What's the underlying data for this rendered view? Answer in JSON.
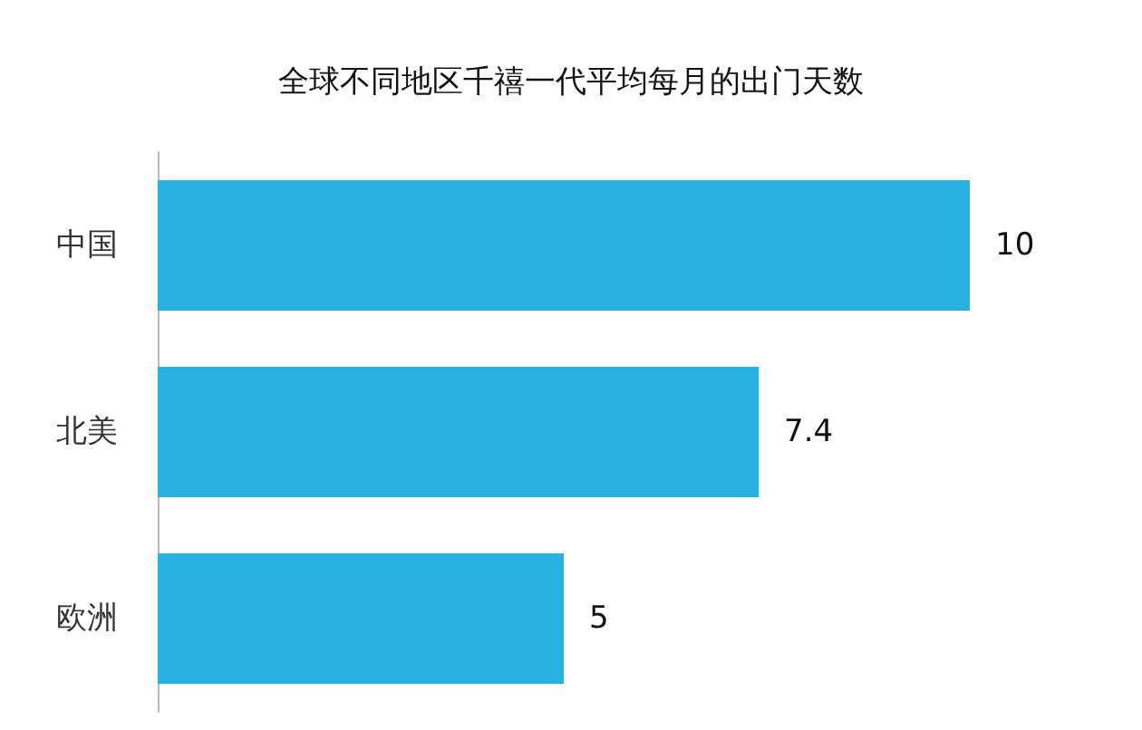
{
  "chart_data": {
    "type": "bar",
    "orientation": "horizontal",
    "title": "全球不同地区千禧一代平均每月的出门天数",
    "categories": [
      "中国",
      "北美",
      "欧洲"
    ],
    "values": [
      10,
      7.4,
      5
    ],
    "color": "#29b1e0",
    "data_labels": true
  }
}
